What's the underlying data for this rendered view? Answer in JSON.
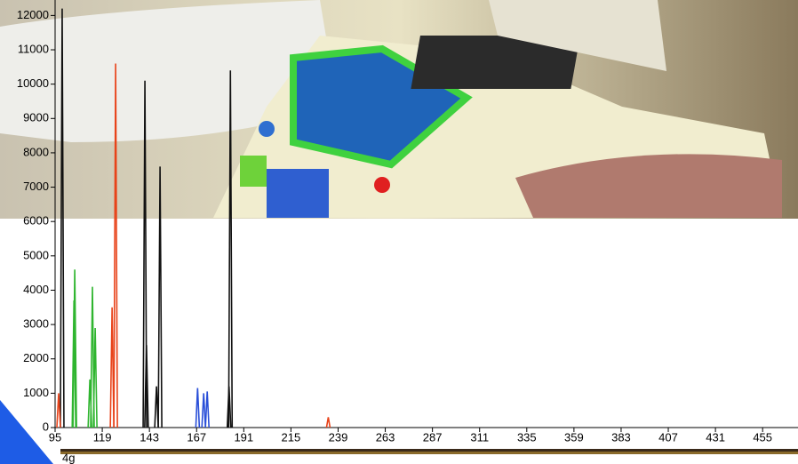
{
  "chart_data": {
    "type": "spike",
    "xlim": [
      95,
      473
    ],
    "ylim": [
      0,
      12450
    ],
    "xticks": [
      95,
      119,
      143,
      167,
      191,
      215,
      239,
      263,
      287,
      311,
      335,
      359,
      383,
      407,
      431,
      455
    ],
    "yticks": [
      0,
      1000,
      2000,
      3000,
      4000,
      5000,
      6000,
      7000,
      8000,
      9000,
      10000,
      11000,
      12000
    ],
    "footer_label": "4g",
    "series": [
      {
        "color": "#111111",
        "x": [
          98.6,
          140.7,
          141.5,
          146.6,
          148.4,
          183.5,
          184.2
        ],
        "values": [
          12200,
          10100,
          2400,
          1200,
          7600,
          1200,
          10400
        ]
      },
      {
        "color": "#e8431a",
        "x": [
          96.8,
          124,
          125.8,
          234
        ],
        "values": [
          1000,
          3500,
          10600,
          300
        ]
      },
      {
        "color": "#2fb52f",
        "x": [
          104.6,
          105,
          112.7,
          114,
          115.4
        ],
        "values": [
          3700,
          4600,
          1400,
          4100,
          2900
        ]
      },
      {
        "color": "#2a4fd8",
        "x": [
          167.5,
          170.6,
          172.4
        ],
        "values": [
          1150,
          1000,
          1050
        ]
      }
    ]
  }
}
